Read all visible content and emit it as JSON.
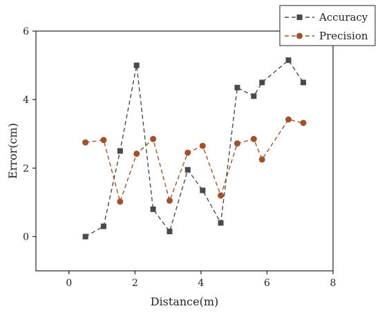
{
  "chart_data": {
    "type": "line",
    "title": "",
    "xlabel": "Distance(m)",
    "ylabel": "Error(cm)",
    "xlim": [
      -1,
      8
    ],
    "ylim": [
      -1,
      6
    ],
    "xticks": [
      0,
      2,
      4,
      6,
      8
    ],
    "yticks": [
      0,
      2,
      4,
      6
    ],
    "legend_position": "top-right",
    "series": [
      {
        "name": "Accuracy",
        "marker": "square",
        "line_style": "dashed",
        "color": "#4a4a4a",
        "x": [
          0.5,
          1.05,
          1.55,
          2.05,
          2.55,
          3.05,
          3.6,
          4.05,
          4.6,
          5.1,
          5.6,
          5.85,
          6.65,
          7.1
        ],
        "y": [
          0.0,
          0.3,
          2.5,
          5.0,
          0.8,
          0.15,
          1.95,
          1.35,
          0.4,
          4.35,
          4.1,
          4.5,
          5.15,
          4.5
        ]
      },
      {
        "name": "Precision",
        "marker": "circle",
        "line_style": "dashed",
        "color": "#a0522d",
        "x": [
          0.5,
          1.05,
          1.55,
          2.05,
          2.55,
          3.05,
          3.6,
          4.05,
          4.6,
          5.1,
          5.6,
          5.85,
          6.65,
          7.1
        ],
        "y": [
          2.75,
          2.82,
          1.02,
          2.42,
          2.85,
          1.05,
          2.45,
          2.65,
          1.2,
          2.72,
          2.85,
          2.25,
          3.42,
          3.32
        ]
      }
    ]
  }
}
